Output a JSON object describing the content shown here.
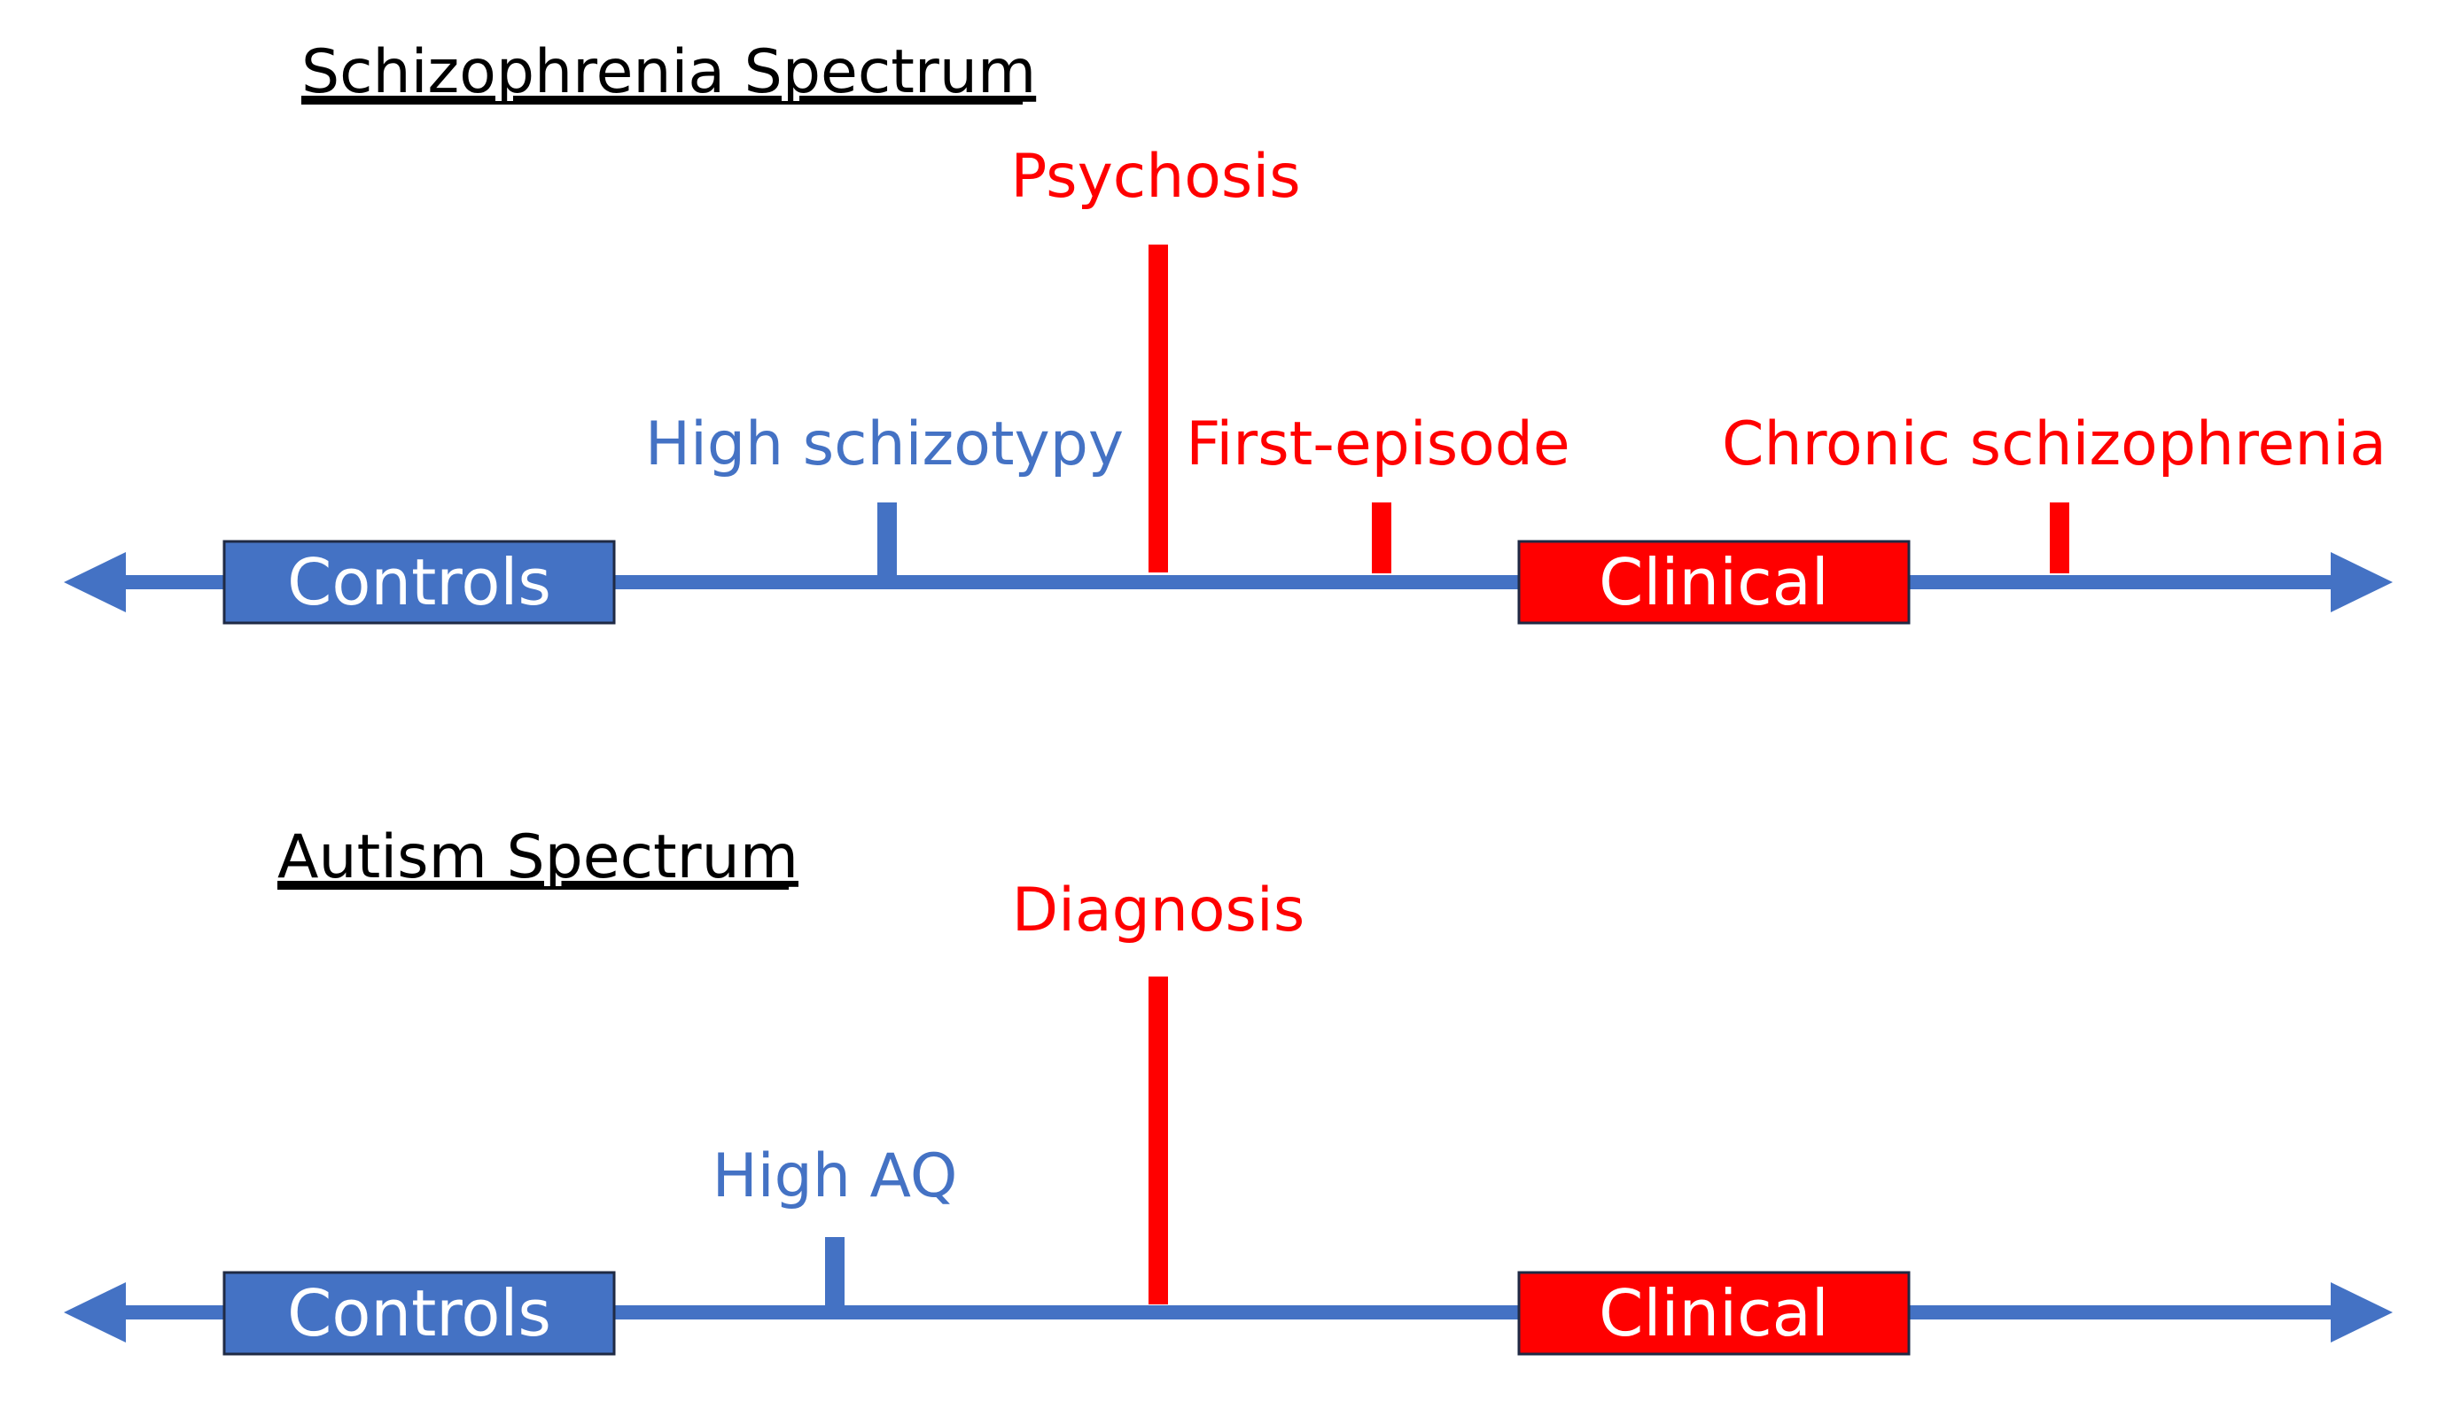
{
  "colors": {
    "blue": "#4472C4",
    "red": "#FF0000",
    "outline": "#1F2A44",
    "black": "#000000",
    "white": "#FFFFFF"
  },
  "schizophrenia": {
    "title": "Schizophrenia Spectrum",
    "controls_label": "Controls",
    "clinical_label": "Clinical",
    "high_schizotypy_label": "High schizotypy",
    "psychosis_label": "Psychosis",
    "first_episode_label": "First-episode",
    "chronic_label": "Chronic schizophrenia"
  },
  "autism": {
    "title": "Autism Spectrum",
    "controls_label": "Controls",
    "clinical_label": "Clinical",
    "high_aq_label": "High AQ",
    "diagnosis_label": "Diagnosis"
  }
}
